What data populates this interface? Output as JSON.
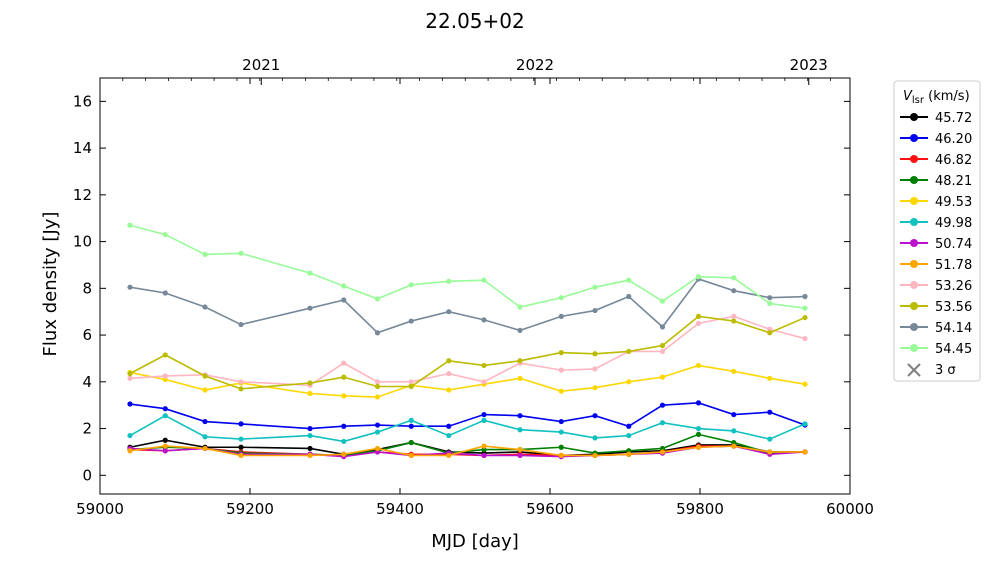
{
  "chart_data": {
    "type": "line",
    "title": "22.05+02",
    "xlabel": "MJD [day]",
    "ylabel": "Flux density [Jy]",
    "xlim": [
      59000,
      60000
    ],
    "ylim": [
      -0.8,
      17
    ],
    "x_ticks": [
      59000,
      59200,
      59400,
      59600,
      59800,
      60000
    ],
    "y_ticks": [
      0,
      2,
      4,
      6,
      8,
      10,
      12,
      14,
      16
    ],
    "top_axis": {
      "ticks": [
        {
          "label": "2021",
          "mjd": 59215
        },
        {
          "label": "2022",
          "mjd": 59580
        },
        {
          "label": "2023",
          "mjd": 59945
        }
      ]
    },
    "grid": false,
    "legend": {
      "placement": "outside-right",
      "title_main": "V",
      "title_sub": "lsr",
      "title_unit": " (km/s)",
      "extra_entry": {
        "label": "3 σ",
        "marker": "x",
        "color": "#808080"
      }
    },
    "x": [
      59040,
      59087,
      59140,
      59188,
      59280,
      59325,
      59370,
      59415,
      59465,
      59512,
      59560,
      59615,
      59660,
      59705,
      59750,
      59798,
      59845,
      59893,
      59940
    ],
    "series": [
      {
        "name": "45.72",
        "color": "#000000",
        "values": [
          1.2,
          1.5,
          1.2,
          1.2,
          1.15,
          0.9,
          1.1,
          1.4,
          1.0,
          0.95,
          1.0,
          0.85,
          0.9,
          1.0,
          1.05,
          1.3,
          1.3,
          1.0,
          1.0
        ]
      },
      {
        "name": "46.20",
        "color": "#0000ee",
        "values": [
          3.05,
          2.85,
          2.3,
          2.2,
          2.0,
          2.1,
          2.15,
          2.1,
          2.1,
          2.6,
          2.55,
          2.3,
          2.55,
          2.1,
          3.0,
          3.1,
          2.6,
          2.7,
          2.15
        ]
      },
      {
        "name": "46.82",
        "color": "#ff1111",
        "values": [
          1.1,
          1.05,
          1.15,
          1.0,
          0.9,
          0.85,
          1.0,
          0.9,
          0.9,
          0.85,
          0.9,
          0.85,
          0.85,
          0.9,
          1.0,
          1.25,
          1.25,
          0.95,
          1.0
        ]
      },
      {
        "name": "48.21",
        "color": "#008000",
        "values": [
          1.1,
          1.2,
          1.15,
          0.95,
          0.9,
          0.85,
          1.05,
          1.4,
          0.95,
          1.1,
          1.1,
          1.2,
          0.95,
          1.05,
          1.15,
          1.75,
          1.4,
          0.95,
          1.0
        ]
      },
      {
        "name": "49.53",
        "color": "#ffd700",
        "values": [
          4.4,
          4.1,
          3.65,
          3.95,
          3.5,
          3.4,
          3.35,
          3.85,
          3.65,
          3.9,
          4.15,
          3.6,
          3.75,
          4.0,
          4.2,
          4.7,
          4.45,
          4.15,
          3.9
        ]
      },
      {
        "name": "49.98",
        "color": "#11c0c0",
        "values": [
          1.7,
          2.55,
          1.65,
          1.55,
          1.7,
          1.45,
          1.85,
          2.35,
          1.7,
          2.35,
          1.95,
          1.85,
          1.6,
          1.7,
          2.25,
          2.0,
          1.9,
          1.55,
          2.2
        ]
      },
      {
        "name": "50.74",
        "color": "#bb11cc",
        "values": [
          1.15,
          1.05,
          1.15,
          0.9,
          0.9,
          0.8,
          1.0,
          0.85,
          0.95,
          0.85,
          0.85,
          0.8,
          0.85,
          0.9,
          0.95,
          1.2,
          1.25,
          0.9,
          1.0
        ]
      },
      {
        "name": "51.78",
        "color": "#ffa500",
        "values": [
          1.05,
          1.25,
          1.15,
          0.85,
          0.85,
          0.9,
          1.15,
          0.85,
          0.85,
          1.25,
          1.1,
          0.85,
          0.85,
          0.9,
          1.0,
          1.2,
          1.25,
          1.0,
          1.0
        ]
      },
      {
        "name": "53.26",
        "color": "#ffb6c1",
        "values": [
          4.15,
          4.25,
          4.3,
          4.0,
          3.85,
          4.8,
          4.0,
          4.0,
          4.35,
          4.0,
          4.8,
          4.5,
          4.55,
          5.3,
          5.3,
          6.5,
          6.8,
          6.25,
          5.85
        ]
      },
      {
        "name": "53.56",
        "color": "#bbbb00",
        "values": [
          4.35,
          5.15,
          4.25,
          3.7,
          3.95,
          4.2,
          3.8,
          3.8,
          4.9,
          4.7,
          4.9,
          5.25,
          5.2,
          5.3,
          5.55,
          6.8,
          6.6,
          6.1,
          6.75
        ]
      },
      {
        "name": "54.14",
        "color": "#778899",
        "values": [
          8.05,
          7.8,
          7.2,
          6.45,
          7.15,
          7.5,
          6.1,
          6.6,
          7.0,
          6.65,
          6.2,
          6.8,
          7.05,
          7.65,
          6.35,
          8.4,
          7.9,
          7.6,
          7.65
        ]
      },
      {
        "name": "54.45",
        "color": "#98fb98",
        "values": [
          10.7,
          10.3,
          9.45,
          9.5,
          8.65,
          8.1,
          7.55,
          8.15,
          8.3,
          8.35,
          7.2,
          7.6,
          8.05,
          8.35,
          7.45,
          8.5,
          8.45,
          7.35,
          7.15
        ]
      }
    ]
  }
}
